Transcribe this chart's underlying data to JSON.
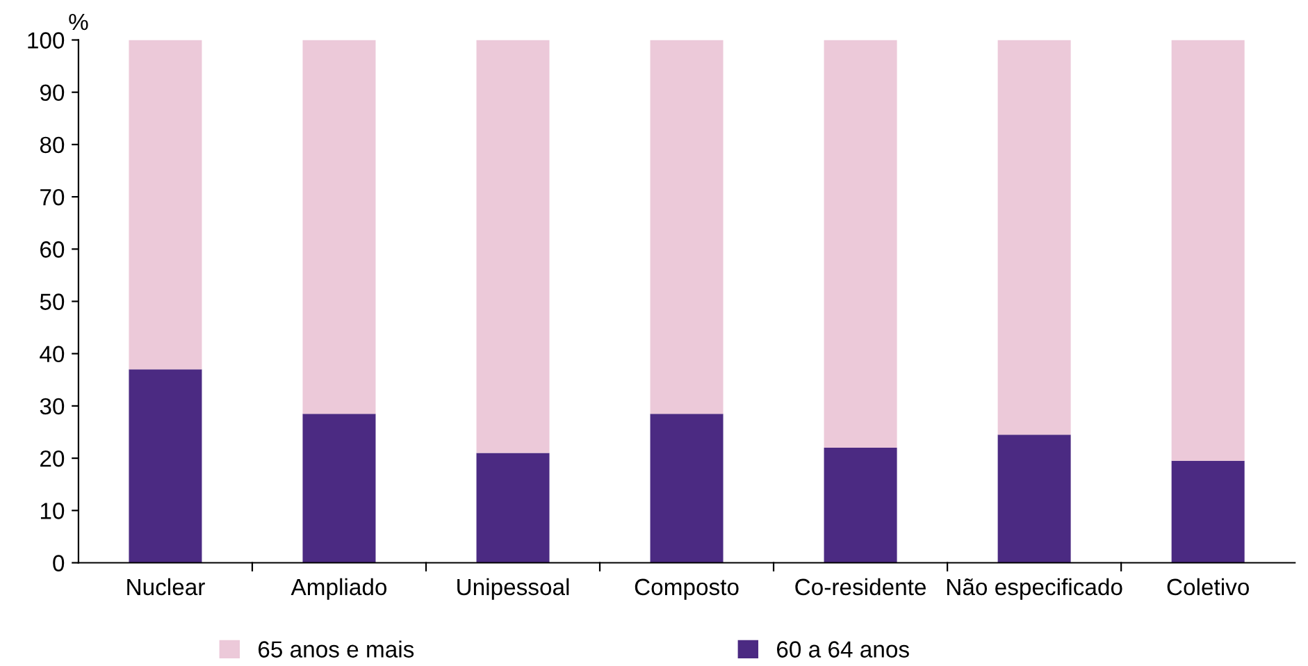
{
  "chart_data": {
    "type": "bar",
    "stacked": true,
    "ylabel": "%",
    "categories": [
      "Nuclear",
      "Ampliado",
      "Unipessoal",
      "Composto",
      "Co-residente",
      "Não especificado",
      "Coletivo"
    ],
    "series": [
      {
        "name": "60 a 64 anos",
        "color": "#4b2a82",
        "values": [
          37,
          28.5,
          21,
          28.5,
          22,
          24.5,
          19.5
        ]
      },
      {
        "name": "65 anos e mais",
        "color": "#ecc9d9",
        "values": [
          63,
          71.5,
          79,
          71.5,
          78,
          75.5,
          80.5
        ]
      }
    ],
    "ylim": [
      0,
      100
    ],
    "yticks": [
      0,
      10,
      20,
      30,
      40,
      50,
      60,
      70,
      80,
      90,
      100
    ],
    "grid": false,
    "legend": "bottom"
  }
}
